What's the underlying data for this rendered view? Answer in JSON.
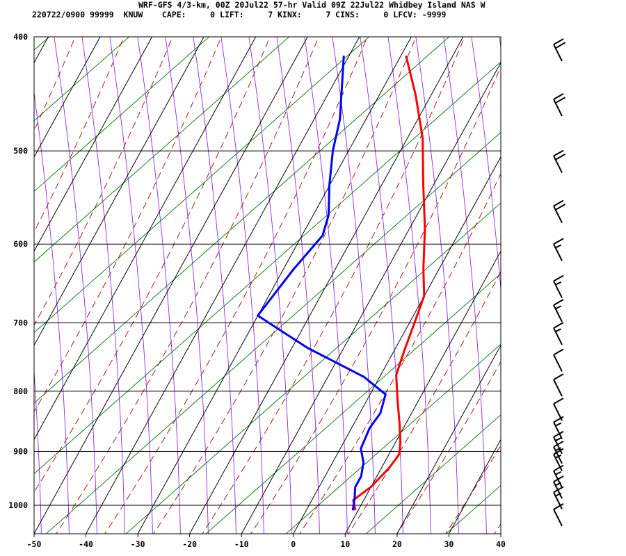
{
  "chart_data": {
    "type": "line",
    "title": "WRF-GFS 4/3-km, 00Z 20Jul22 57-hr Valid 09Z 22Jul22 Whidbey Island NAS W",
    "subtitle": "220722/0900 99999  KNUW    CAPE:     0 LIFT:     7 KINX:     7 CINS:     0 LFCV: -9999",
    "xlabel": "",
    "ylabel": "",
    "x_ticks": [
      "-50",
      "-40",
      "-30",
      "-20",
      "-10",
      "0",
      "10",
      "20",
      "30",
      "40"
    ],
    "y_ticks": [
      "400",
      "500",
      "600",
      "700",
      "800",
      "900",
      "1000"
    ],
    "xlim": [
      -50,
      40
    ],
    "ylim": [
      1050,
      400
    ],
    "grid": true,
    "series": [
      {
        "name": "",
        "color": "#ff0000",
        "points": [
          [
            -26,
            415
          ],
          [
            -20,
            448
          ],
          [
            -14,
            488
          ],
          [
            -9,
            534
          ],
          [
            -4,
            582
          ],
          [
            0,
            630
          ],
          [
            3,
            664
          ],
          [
            4,
            700
          ],
          [
            5,
            740
          ],
          [
            6,
            775
          ],
          [
            9,
            815
          ],
          [
            12,
            855
          ],
          [
            14,
            885
          ],
          [
            15,
            905
          ],
          [
            14.5,
            930
          ],
          [
            13,
            965
          ],
          [
            11,
            990
          ],
          [
            12.5,
            1010
          ]
        ]
      },
      {
        "name": "",
        "color": "#0000ff",
        "points": [
          [
            -38,
            415
          ],
          [
            -32,
            470
          ],
          [
            -30,
            500
          ],
          [
            -27,
            535
          ],
          [
            -24,
            567
          ],
          [
            -23,
            590
          ],
          [
            -25,
            630
          ],
          [
            -27,
            690
          ],
          [
            -14,
            735
          ],
          [
            0,
            778
          ],
          [
            6,
            805
          ],
          [
            7,
            835
          ],
          [
            6.5,
            860
          ],
          [
            7,
            895
          ],
          [
            9,
            920
          ],
          [
            10,
            945
          ],
          [
            10,
            965
          ],
          [
            11,
            985
          ],
          [
            12,
            1010
          ]
        ]
      }
    ],
    "wind_barbs": [
      {
        "pressure": 406,
        "speed_kt": 20
      },
      {
        "pressure": 452,
        "speed_kt": 20
      },
      {
        "pressure": 505,
        "speed_kt": 20
      },
      {
        "pressure": 557,
        "speed_kt": 20
      },
      {
        "pressure": 600,
        "speed_kt": 15
      },
      {
        "pressure": 645,
        "speed_kt": 15
      },
      {
        "pressure": 676,
        "speed_kt": 15
      },
      {
        "pressure": 707,
        "speed_kt": 15
      },
      {
        "pressure": 745,
        "speed_kt": 10
      },
      {
        "pressure": 782,
        "speed_kt": 10
      },
      {
        "pressure": 820,
        "speed_kt": 10
      },
      {
        "pressure": 850,
        "speed_kt": 15
      },
      {
        "pressure": 875,
        "speed_kt": 15
      },
      {
        "pressure": 892,
        "speed_kt": 15
      },
      {
        "pressure": 905,
        "speed_kt": 15
      },
      {
        "pressure": 935,
        "speed_kt": 15
      },
      {
        "pressure": 955,
        "speed_kt": 15
      },
      {
        "pressure": 975,
        "speed_kt": 15
      },
      {
        "pressure": 1008,
        "speed_kt": 10
      }
    ],
    "colors": {
      "grid": "#000000",
      "dry_adiabat": "#007000",
      "moist_adiabat": "#a00000",
      "mixing_ratio": "#8a2be2",
      "temperature": "#ff0000",
      "dewpoint": "#0000ff"
    }
  }
}
